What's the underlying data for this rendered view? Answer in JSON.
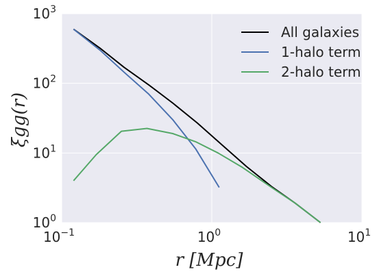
{
  "chart_data": {
    "type": "line",
    "xscale": "log",
    "yscale": "log",
    "xlim": [
      0.1,
      10
    ],
    "ylim": [
      1,
      1000
    ],
    "grid": true,
    "legend_position": "top-right",
    "xlabel": "r [Mpc]",
    "ylabel": "ξgg(r)",
    "x_ticks": [
      {
        "value": 0.1,
        "base": "10",
        "exp": "−1"
      },
      {
        "value": 1,
        "base": "10",
        "exp": "0"
      },
      {
        "value": 10,
        "base": "10",
        "exp": "1"
      }
    ],
    "y_ticks": [
      {
        "value": 1,
        "base": "10",
        "exp": "0"
      },
      {
        "value": 10,
        "base": "10",
        "exp": "1"
      },
      {
        "value": 100,
        "base": "10",
        "exp": "2"
      },
      {
        "value": 1000,
        "base": "10",
        "exp": "3"
      }
    ],
    "series": [
      {
        "name": "All galaxies",
        "color": "#000000",
        "points": [
          [
            0.12,
            600
          ],
          [
            0.18,
            320
          ],
          [
            0.26,
            170
          ],
          [
            0.38,
            95
          ],
          [
            0.55,
            52
          ],
          [
            0.8,
            27
          ],
          [
            1.15,
            13.5
          ],
          [
            1.7,
            6.4
          ],
          [
            2.5,
            3.3
          ],
          [
            3.6,
            1.9
          ],
          [
            5.3,
            1.0
          ]
        ]
      },
      {
        "name": "1-halo term",
        "color": "#4c72b0",
        "points": [
          [
            0.12,
            600
          ],
          [
            0.18,
            300
          ],
          [
            0.26,
            145
          ],
          [
            0.38,
            70
          ],
          [
            0.55,
            30
          ],
          [
            0.78,
            11.5
          ],
          [
            1.12,
            3.2
          ]
        ]
      },
      {
        "name": "2-halo term",
        "color": "#55a868",
        "points": [
          [
            0.12,
            4.0
          ],
          [
            0.17,
            9.5
          ],
          [
            0.25,
            20.5
          ],
          [
            0.37,
            22.5
          ],
          [
            0.55,
            19
          ],
          [
            0.78,
            14.5
          ],
          [
            1.1,
            10
          ],
          [
            1.6,
            6.2
          ],
          [
            2.5,
            3.2
          ],
          [
            3.6,
            1.9
          ],
          [
            5.3,
            1.0
          ]
        ]
      }
    ]
  }
}
